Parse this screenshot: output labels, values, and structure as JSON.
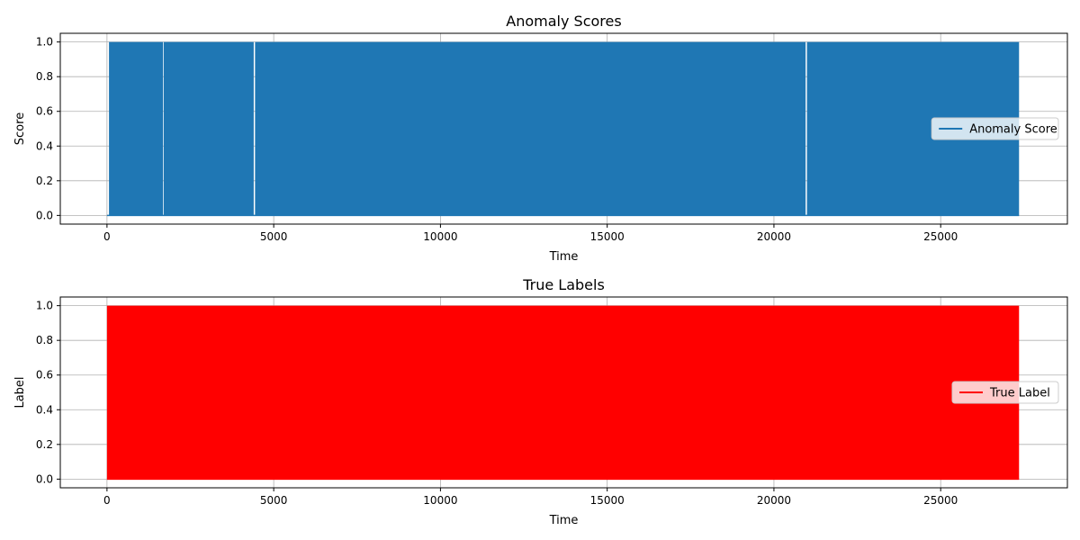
{
  "chart_data": [
    {
      "type": "line",
      "title": "Anomaly Scores",
      "xlabel": "Time",
      "ylabel": "Score",
      "xlim": [
        -1400,
        28800
      ],
      "ylim": [
        -0.05,
        1.05
      ],
      "x_ticks": [
        0,
        5000,
        10000,
        15000,
        20000,
        25000
      ],
      "y_ticks": [
        0.0,
        0.2,
        0.4,
        0.6,
        0.8,
        1.0
      ],
      "x_tick_labels": [
        "0",
        "5000",
        "10000",
        "15000",
        "20000",
        "25000"
      ],
      "y_tick_labels": [
        "0.0",
        "0.2",
        "0.4",
        "0.6",
        "0.8",
        "1.0"
      ],
      "grid": true,
      "legend_position": "center-right",
      "series": [
        {
          "name": "Anomaly Score",
          "color": "#1f77b4",
          "x_range": [
            0,
            27350
          ],
          "values_range": [
            0,
            1
          ],
          "filled_segments": [
            [
              60,
              1680
            ],
            [
              1700,
              4400
            ],
            [
              4440,
              20950
            ],
            [
              20990,
              27350
            ]
          ]
        }
      ]
    },
    {
      "type": "line",
      "title": "True Labels",
      "xlabel": "Time",
      "ylabel": "Label",
      "xlim": [
        -1400,
        28800
      ],
      "ylim": [
        -0.05,
        1.05
      ],
      "x_ticks": [
        0,
        5000,
        10000,
        15000,
        20000,
        25000
      ],
      "y_ticks": [
        0.0,
        0.2,
        0.4,
        0.6,
        0.8,
        1.0
      ],
      "x_tick_labels": [
        "0",
        "5000",
        "10000",
        "15000",
        "20000",
        "25000"
      ],
      "y_tick_labels": [
        "0.0",
        "0.2",
        "0.4",
        "0.6",
        "0.8",
        "1.0"
      ],
      "grid": true,
      "legend_position": "center-right",
      "series": [
        {
          "name": "True Label",
          "color": "#ff0000",
          "x_range": [
            0,
            27350
          ],
          "values_range": [
            0,
            1
          ],
          "filled_segments": [
            [
              0,
              27350
            ]
          ]
        }
      ]
    }
  ]
}
